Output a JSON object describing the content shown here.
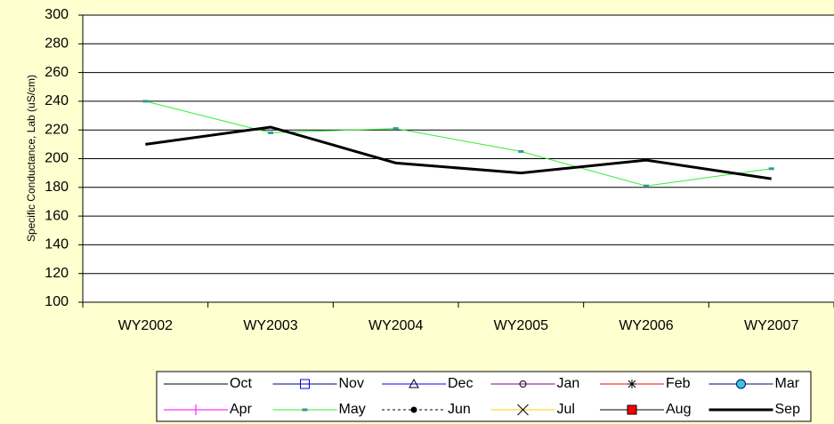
{
  "chart_data": {
    "type": "line",
    "y_label": "Specific Conductance, Lab (uS/cm)",
    "categories": [
      "WY2002",
      "WY2003",
      "WY2004",
      "WY2005",
      "WY2006",
      "WY2007"
    ],
    "ylim": [
      100,
      300
    ],
    "yticks": [
      100,
      120,
      140,
      160,
      180,
      200,
      220,
      240,
      260,
      280,
      300
    ],
    "grid": true,
    "legend": "bottom",
    "series": [
      {
        "name": "Oct",
        "color": "#000000",
        "marker": "none",
        "values": [
          null,
          null,
          null,
          null,
          null,
          null
        ]
      },
      {
        "name": "Nov",
        "color": "#000080",
        "marker": "square",
        "values": [
          null,
          null,
          null,
          null,
          null,
          null
        ]
      },
      {
        "name": "Dec",
        "color": "#0000ff",
        "marker": "triangle",
        "values": [
          null,
          null,
          null,
          null,
          null,
          null
        ]
      },
      {
        "name": "Jan",
        "color": "#800080",
        "marker": "circle",
        "values": [
          null,
          null,
          null,
          null,
          null,
          null
        ]
      },
      {
        "name": "Feb",
        "color": "#ff0000",
        "marker": "star",
        "values": [
          null,
          null,
          null,
          null,
          null,
          null
        ]
      },
      {
        "name": "Mar",
        "color": "#000080",
        "marker": "filled-circle",
        "values": [
          null,
          null,
          null,
          null,
          null,
          null
        ]
      },
      {
        "name": "Apr",
        "color": "#ff00ff",
        "marker": "plus",
        "values": [
          null,
          null,
          null,
          null,
          null,
          null
        ]
      },
      {
        "name": "May",
        "color": "#33ee33",
        "marker": "dash",
        "values": [
          240,
          218,
          221,
          205,
          181,
          193
        ]
      },
      {
        "name": "Jun",
        "color": "#000000",
        "marker": "dot",
        "dashed": true,
        "values": [
          null,
          null,
          null,
          null,
          null,
          null
        ]
      },
      {
        "name": "Jul",
        "color": "#ffcc00",
        "marker": "x",
        "values": [
          null,
          null,
          null,
          null,
          null,
          null
        ]
      },
      {
        "name": "Aug",
        "color": "#000000",
        "marker": "red-square",
        "values": [
          null,
          null,
          null,
          null,
          null,
          null
        ]
      },
      {
        "name": "Sep",
        "color": "#000000",
        "marker": "none",
        "line_width": 3,
        "values": [
          210,
          222,
          197,
          190,
          199,
          186
        ]
      }
    ]
  }
}
